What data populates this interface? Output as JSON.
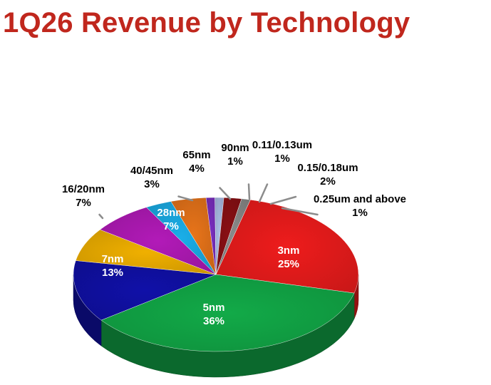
{
  "title": "1Q26 Revenue by Technology",
  "colors": {
    "title": "#c0271d"
  },
  "chart_data": {
    "type": "pie",
    "title": "1Q26 Revenue by Technology",
    "legend": "none",
    "slices": [
      {
        "label": "3nm",
        "value": 25,
        "pct": "25%",
        "color": "#ee1c1c"
      },
      {
        "label": "5nm",
        "value": 36,
        "pct": "36%",
        "color": "#12aa48"
      },
      {
        "label": "7nm",
        "value": 13,
        "pct": "13%",
        "color": "#1010a8"
      },
      {
        "label": "16/20nm",
        "value": 7,
        "pct": "7%",
        "color": "#f0b000"
      },
      {
        "label": "28nm",
        "value": 7,
        "pct": "7%",
        "color": "#b21ab8"
      },
      {
        "label": "40/45nm",
        "value": 3,
        "pct": "3%",
        "color": "#1aaee8"
      },
      {
        "label": "65nm",
        "value": 4,
        "pct": "4%",
        "color": "#e8741a"
      },
      {
        "label": "90nm",
        "value": 1,
        "pct": "1%",
        "color": "#7a2ec0"
      },
      {
        "label": "0.11/0.13um",
        "value": 1,
        "pct": "1%",
        "color": "#aabde6"
      },
      {
        "label": "0.15/0.18um",
        "value": 2,
        "pct": "2%",
        "color": "#8a0f14"
      },
      {
        "label": "0.25um and above",
        "value": 1,
        "pct": "1%",
        "color": "#8a8a8a"
      }
    ]
  }
}
